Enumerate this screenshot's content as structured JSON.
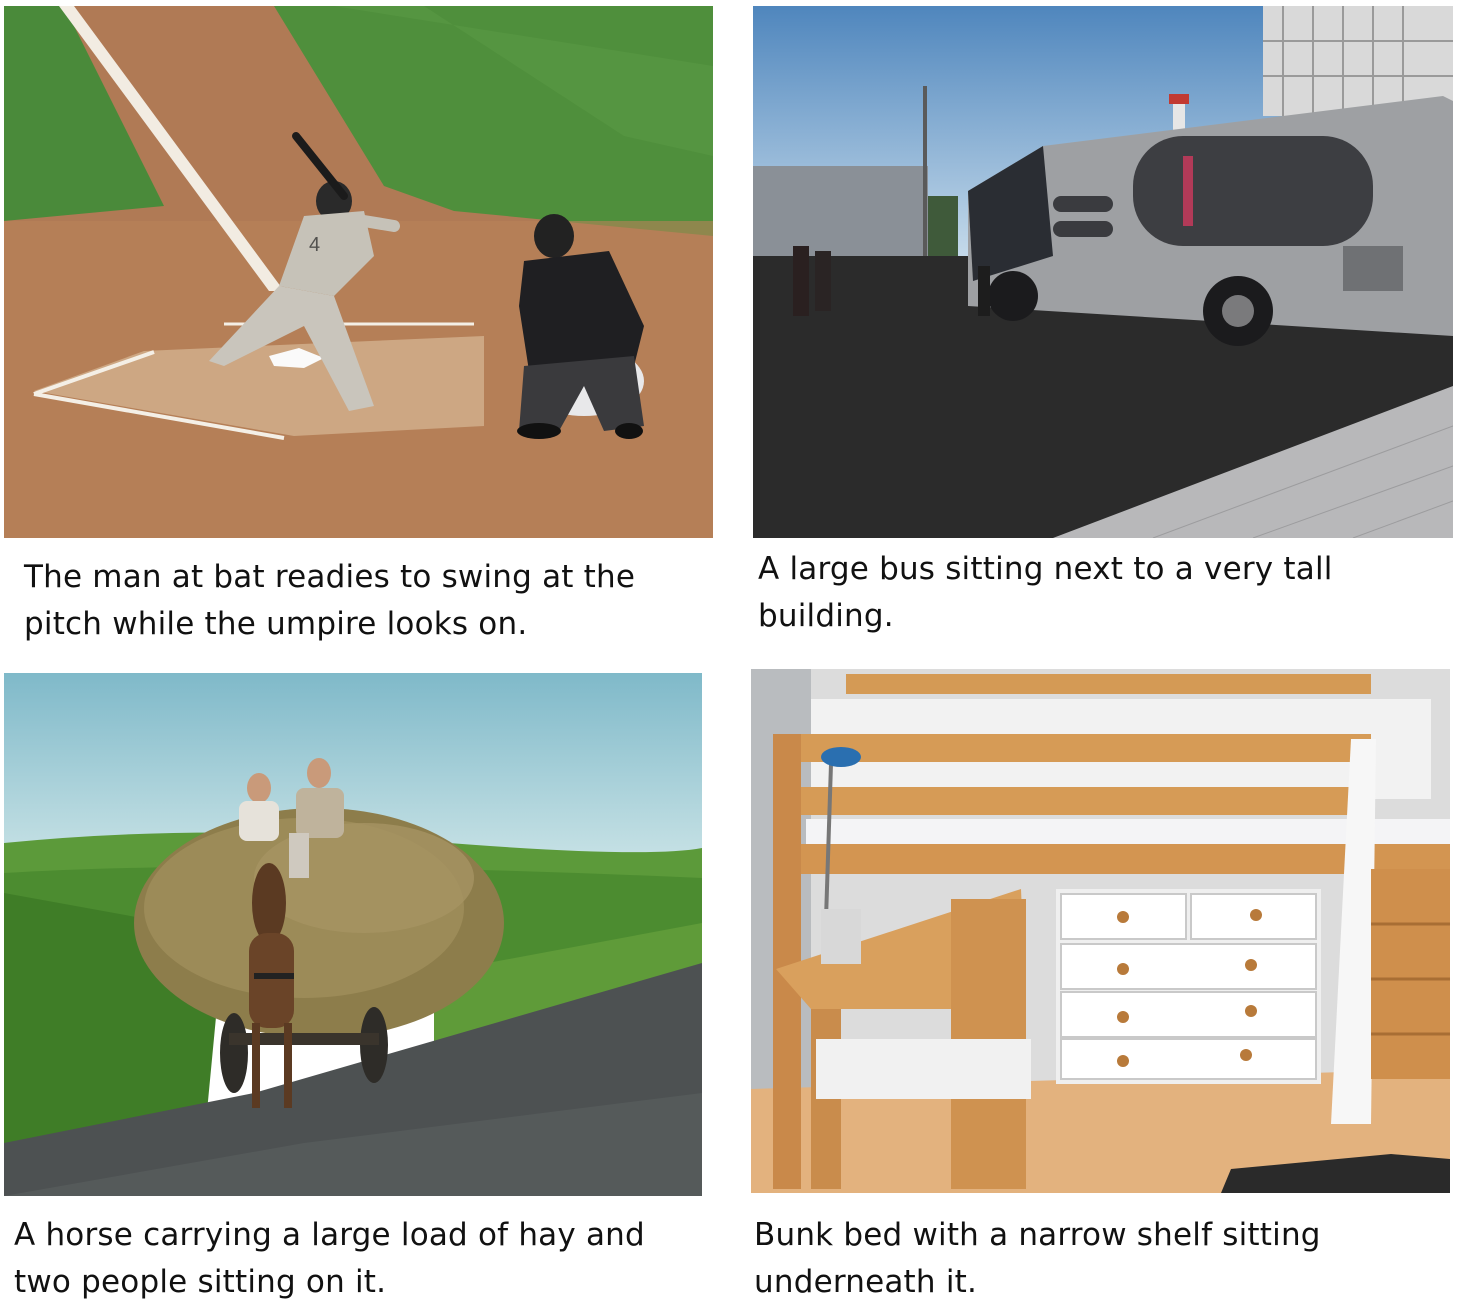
{
  "panels": [
    {
      "image_subject": "baseball batter, catcher and umpire at home plate",
      "caption": "The man at bat readies to swing at the pitch while the umpire looks on."
    },
    {
      "image_subject": "large silver bus parked next to a tall building",
      "caption": "A large bus sitting next to a very tall building."
    },
    {
      "image_subject": "horse pulling a cart with a large load of hay and two people on top",
      "caption": "A horse carrying a large load of hay and two people sitting on it."
    },
    {
      "image_subject": "wooden loft bunk bed with white drawers and a desk shelf underneath",
      "caption": "Bunk bed with a narrow shelf sitting underneath it."
    }
  ],
  "colors": {
    "dirt": "#b5805a",
    "grass": "#4f8a3a",
    "sky": "#a9cfe0",
    "pine": "#d99c55"
  }
}
